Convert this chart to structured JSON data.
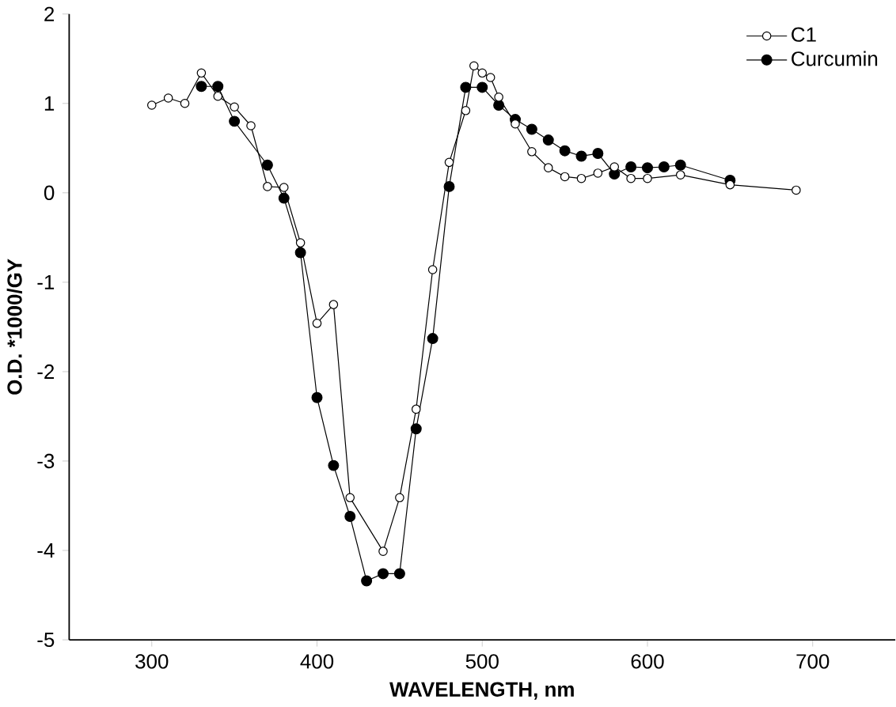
{
  "chart_data": {
    "type": "line",
    "xlabel": "WAVELENGTH, nm",
    "ylabel": "O.D. *1000/GY",
    "xlim": [
      250,
      750
    ],
    "xticks": [
      300,
      400,
      500,
      600,
      700
    ],
    "ylim": [
      -5,
      2
    ],
    "yticks": [
      -5,
      -4,
      -3,
      -2,
      -1,
      0,
      1,
      2
    ],
    "marker": "circle",
    "legend": "top right",
    "grid": false,
    "series": [
      {
        "name": "C1",
        "color": "#ffffff",
        "x": [
          300,
          310,
          320,
          330,
          340,
          350,
          360,
          370,
          380,
          390,
          400,
          410,
          420,
          440,
          450,
          460,
          470,
          480,
          490,
          495,
          500,
          505,
          510,
          520,
          530,
          540,
          550,
          560,
          570,
          580,
          590,
          600,
          620,
          650,
          690
        ],
        "values": [
          0.98,
          1.06,
          1.0,
          1.34,
          1.08,
          0.96,
          0.75,
          0.07,
          0.06,
          -0.56,
          -1.46,
          -1.25,
          -3.41,
          -4.01,
          -3.41,
          -2.42,
          -0.86,
          0.34,
          0.92,
          1.42,
          1.34,
          1.29,
          1.07,
          0.77,
          0.46,
          0.28,
          0.18,
          0.16,
          0.22,
          0.29,
          0.16,
          0.16,
          0.2,
          0.09,
          0.03
        ]
      },
      {
        "name": "Curcumin",
        "color": "#000000",
        "x": [
          330,
          340,
          350,
          370,
          380,
          390,
          400,
          410,
          420,
          430,
          440,
          450,
          460,
          470,
          480,
          490,
          500,
          510,
          520,
          530,
          540,
          550,
          560,
          570,
          580,
          590,
          600,
          610,
          620,
          650
        ],
        "values": [
          1.19,
          1.19,
          0.8,
          0.31,
          -0.06,
          -0.67,
          -2.29,
          -3.05,
          -3.62,
          -4.34,
          -4.26,
          -4.26,
          -2.64,
          -1.63,
          0.07,
          1.18,
          1.18,
          0.98,
          0.82,
          0.71,
          0.59,
          0.47,
          0.41,
          0.44,
          0.21,
          0.29,
          0.28,
          0.29,
          0.31,
          0.14
        ]
      }
    ]
  }
}
